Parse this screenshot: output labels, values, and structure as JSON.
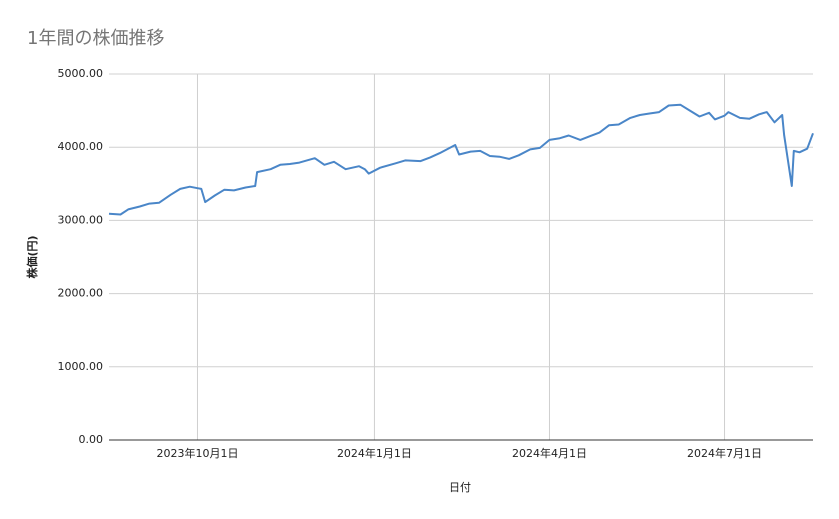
{
  "chart_data": {
    "type": "line",
    "title": "1年間の株価推移",
    "x_label": "日付",
    "y_label": "株価(円)",
    "xlim": [
      "2023-08-16",
      "2024-08-16"
    ],
    "xticks": [
      {
        "value": "2023-10-01",
        "label": "2023年10月1日"
      },
      {
        "value": "2024-01-01",
        "label": "2024年1月1日"
      },
      {
        "value": "2024-04-01",
        "label": "2024年4月1日"
      },
      {
        "value": "2024-07-01",
        "label": "2024年7月1日"
      }
    ],
    "ylim": [
      0,
      5000
    ],
    "yticks": [
      {
        "value": 0,
        "label": "0.00"
      },
      {
        "value": 1000,
        "label": "1000.00"
      },
      {
        "value": 2000,
        "label": "2000.00"
      },
      {
        "value": 3000,
        "label": "3000.00"
      },
      {
        "value": 4000,
        "label": "4000.00"
      },
      {
        "value": 5000,
        "label": "5000.00"
      }
    ],
    "grid": true,
    "x": [
      "2023-08-16",
      "2023-08-22",
      "2023-08-26",
      "2023-09-01",
      "2023-09-06",
      "2023-09-11",
      "2023-09-17",
      "2023-09-22",
      "2023-09-27",
      "2023-10-01",
      "2023-10-03",
      "2023-10-05",
      "2023-10-10",
      "2023-10-15",
      "2023-10-20",
      "2023-10-26",
      "2023-10-31",
      "2023-11-01",
      "2023-11-08",
      "2023-11-13",
      "2023-11-18",
      "2023-11-23",
      "2023-12-01",
      "2023-12-06",
      "2023-12-11",
      "2023-12-17",
      "2023-12-24",
      "2023-12-27",
      "2023-12-29",
      "2024-01-04",
      "2024-01-12",
      "2024-01-17",
      "2024-01-25",
      "2024-01-30",
      "2024-02-04",
      "2024-02-12",
      "2024-02-14",
      "2024-02-20",
      "2024-02-25",
      "2024-03-01",
      "2024-03-06",
      "2024-03-11",
      "2024-03-16",
      "2024-03-22",
      "2024-03-27",
      "2024-04-01",
      "2024-04-06",
      "2024-04-11",
      "2024-04-17",
      "2024-04-22",
      "2024-04-27",
      "2024-05-02",
      "2024-05-07",
      "2024-05-13",
      "2024-05-18",
      "2024-05-23",
      "2024-05-28",
      "2024-06-02",
      "2024-06-08",
      "2024-06-13",
      "2024-06-18",
      "2024-06-23",
      "2024-06-26",
      "2024-07-01",
      "2024-07-03",
      "2024-07-09",
      "2024-07-14",
      "2024-07-19",
      "2024-07-23",
      "2024-07-27",
      "2024-07-31",
      "2024-08-01",
      "2024-08-05",
      "2024-08-06",
      "2024-08-09",
      "2024-08-13",
      "2024-08-16"
    ],
    "series": [
      {
        "color": "#4a86c8",
        "values": [
          3090,
          3080,
          3150,
          3190,
          3230,
          3240,
          3350,
          3430,
          3460,
          3440,
          3430,
          3250,
          3340,
          3420,
          3410,
          3450,
          3470,
          3660,
          3700,
          3760,
          3770,
          3790,
          3850,
          3760,
          3800,
          3700,
          3740,
          3700,
          3640,
          3720,
          3780,
          3820,
          3810,
          3860,
          3920,
          4030,
          3900,
          3940,
          3950,
          3880,
          3870,
          3840,
          3890,
          3970,
          3990,
          4100,
          4120,
          4160,
          4100,
          4150,
          4200,
          4300,
          4310,
          4400,
          4440,
          4460,
          4480,
          4570,
          4580,
          4500,
          4420,
          4470,
          4380,
          4430,
          4480,
          4400,
          4390,
          4450,
          4480,
          4340,
          4440,
          4170,
          3470,
          3950,
          3930,
          3980,
          4190
        ]
      }
    ]
  }
}
